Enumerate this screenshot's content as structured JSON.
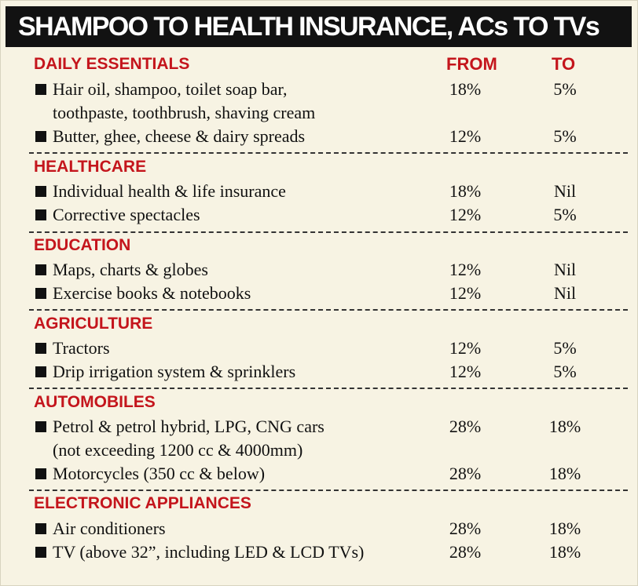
{
  "title": "SHAMPOO TO HEALTH INSURANCE, ACs TO TVs",
  "columns": {
    "from": "FROM",
    "to": "TO"
  },
  "sections": [
    {
      "title": "DAILY ESSENTIALS",
      "items": [
        {
          "label": "Hair oil, shampoo, toilet soap bar,\ntoothpaste, toothbrush, shaving cream",
          "from": "18%",
          "to": "5%"
        },
        {
          "label": "Butter, ghee, cheese & dairy spreads",
          "from": "12%",
          "to": "5%"
        }
      ]
    },
    {
      "title": "HEALTHCARE",
      "items": [
        {
          "label": "Individual health & life insurance",
          "from": "18%",
          "to": "Nil"
        },
        {
          "label": "Corrective spectacles",
          "from": "12%",
          "to": "5%"
        }
      ]
    },
    {
      "title": "EDUCATION",
      "items": [
        {
          "label": "Maps, charts & globes",
          "from": "12%",
          "to": "Nil"
        },
        {
          "label": "Exercise books & notebooks",
          "from": "12%",
          "to": "Nil"
        }
      ]
    },
    {
      "title": "AGRICULTURE",
      "items": [
        {
          "label": "Tractors",
          "from": "12%",
          "to": "5%"
        },
        {
          "label": "Drip irrigation system & sprinklers",
          "from": "12%",
          "to": "5%"
        }
      ]
    },
    {
      "title": "AUTOMOBILES",
      "items": [
        {
          "label": "Petrol & petrol hybrid, LPG, CNG cars\n(not exceeding 1200 cc & 4000mm)",
          "from": "28%",
          "to": "18%"
        },
        {
          "label": "Motorcycles (350 cc & below)",
          "from": "28%",
          "to": "18%"
        }
      ]
    },
    {
      "title": "ELECTRONIC APPLIANCES",
      "items": [
        {
          "label": "Air conditioners",
          "from": "28%",
          "to": "18%"
        },
        {
          "label": "TV (above 32”, including LED & LCD TVs)",
          "from": "28%",
          "to": "18%"
        }
      ]
    }
  ]
}
